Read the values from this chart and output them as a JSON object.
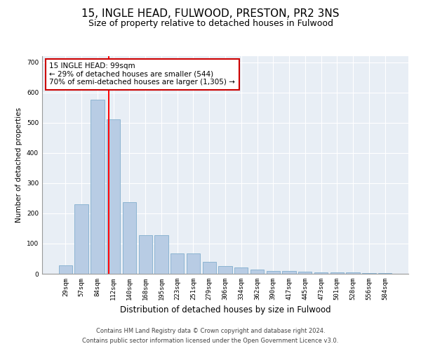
{
  "title": "15, INGLE HEAD, FULWOOD, PRESTON, PR2 3NS",
  "subtitle": "Size of property relative to detached houses in Fulwood",
  "xlabel": "Distribution of detached houses by size in Fulwood",
  "ylabel": "Number of detached properties",
  "categories": [
    "29sqm",
    "57sqm",
    "84sqm",
    "112sqm",
    "140sqm",
    "168sqm",
    "195sqm",
    "223sqm",
    "251sqm",
    "279sqm",
    "306sqm",
    "334sqm",
    "362sqm",
    "390sqm",
    "417sqm",
    "445sqm",
    "473sqm",
    "501sqm",
    "528sqm",
    "556sqm",
    "584sqm"
  ],
  "values": [
    27,
    230,
    575,
    510,
    237,
    127,
    127,
    68,
    68,
    40,
    25,
    20,
    15,
    10,
    10,
    7,
    5,
    5,
    5,
    2,
    2
  ],
  "bar_color": "#b8cce4",
  "bar_edge_color": "#8cb4d2",
  "red_line_x": 2.72,
  "annotation_title": "15 INGLE HEAD: 99sqm",
  "annotation_line1": "← 29% of detached houses are smaller (544)",
  "annotation_line2": "70% of semi-detached houses are larger (1,305) →",
  "annotation_box_color": "#cc0000",
  "ylim": [
    0,
    720
  ],
  "yticks": [
    0,
    100,
    200,
    300,
    400,
    500,
    600,
    700
  ],
  "background_color": "#e8eef5",
  "footer_line1": "Contains HM Land Registry data © Crown copyright and database right 2024.",
  "footer_line2": "Contains public sector information licensed under the Open Government Licence v3.0.",
  "title_fontsize": 11,
  "subtitle_fontsize": 9,
  "xlabel_fontsize": 8.5,
  "ylabel_fontsize": 7.5,
  "tick_fontsize": 6.5,
  "annotation_fontsize": 7.5,
  "footer_fontsize": 6
}
